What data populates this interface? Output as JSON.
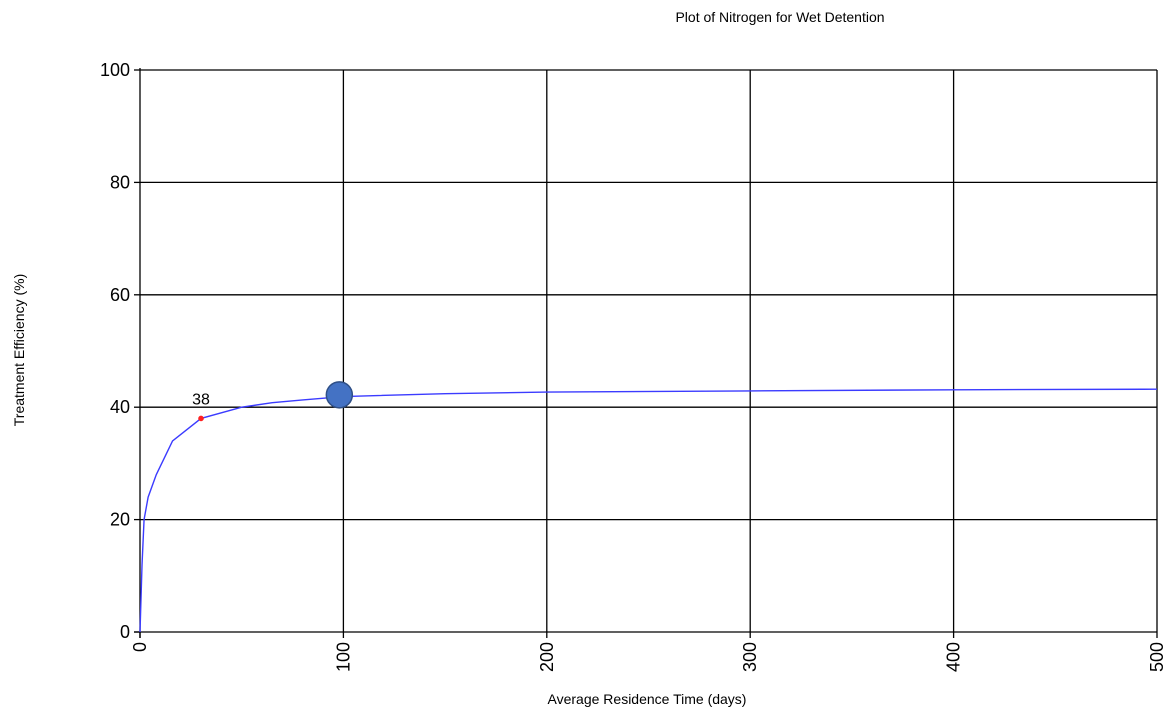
{
  "chart_data": {
    "type": "line",
    "title": "Plot of Nitrogen for Wet Detention",
    "xlabel": "Average Residence Time (days)",
    "ylabel": "Treatment Efficiency (%)",
    "xlim": [
      0,
      500
    ],
    "ylim": [
      0,
      100
    ],
    "xticks": [
      0,
      100,
      200,
      300,
      400,
      500
    ],
    "yticks": [
      0,
      20,
      40,
      60,
      80,
      100
    ],
    "grid": true,
    "series": [
      {
        "color": "#3b3bff",
        "x": [
          0,
          1,
          2,
          4,
          8,
          16,
          30,
          50,
          65,
          80,
          100,
          150,
          200,
          300,
          400,
          500
        ],
        "y": [
          0,
          12,
          20,
          24,
          28,
          34,
          38,
          40,
          40.8,
          41.3,
          41.9,
          42.4,
          42.7,
          42.9,
          43.1,
          43.2
        ]
      }
    ],
    "highlight_point": {
      "x": 30,
      "y": 38,
      "label": "38",
      "color": "#ff2020"
    },
    "marker": {
      "x": 98,
      "y": 42.2,
      "color": "#4472c4"
    }
  }
}
